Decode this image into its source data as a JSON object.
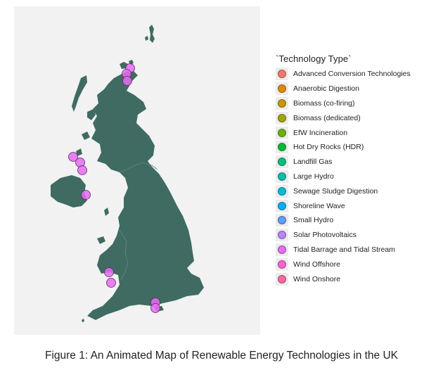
{
  "legend": {
    "title": "`Technology Type`",
    "items": [
      {
        "label": "Advanced Conversion Technologies",
        "color": "#F8766D"
      },
      {
        "label": "Anaerobic Digestion",
        "color": "#E58700"
      },
      {
        "label": "Biomass (co-firing)",
        "color": "#C99800"
      },
      {
        "label": "Biomass (dedicated)",
        "color": "#A3A500"
      },
      {
        "label": "EfW Incineration",
        "color": "#6BB100"
      },
      {
        "label": "Hot Dry Rocks (HDR)",
        "color": "#00BA38"
      },
      {
        "label": "Landfill Gas",
        "color": "#00BF7D"
      },
      {
        "label": "Large Hydro",
        "color": "#00C0AF"
      },
      {
        "label": "Sewage Sludge Digestion",
        "color": "#00BCD8"
      },
      {
        "label": "Shoreline Wave",
        "color": "#00B0F6"
      },
      {
        "label": "Small Hydro",
        "color": "#619CFF"
      },
      {
        "label": "Solar Photovoltaics",
        "color": "#B983FF"
      },
      {
        "label": "Tidal Barrage and Tidal Stream",
        "color": "#E76BF3"
      },
      {
        "label": "Wind Offshore",
        "color": "#FD61D1"
      },
      {
        "label": "Wind Onshore",
        "color": "#FF67A4"
      }
    ]
  },
  "map": {
    "land_color": "#3f6b62",
    "border_color": "#5e8a80",
    "panel_color": "#f2f2f2",
    "marker_technology": "Tidal Barrage and Tidal Stream",
    "marker_color": "#E76BF3"
  },
  "caption": "Figure 1: An Animated Map of Renewable Energy Technologies in the UK"
}
